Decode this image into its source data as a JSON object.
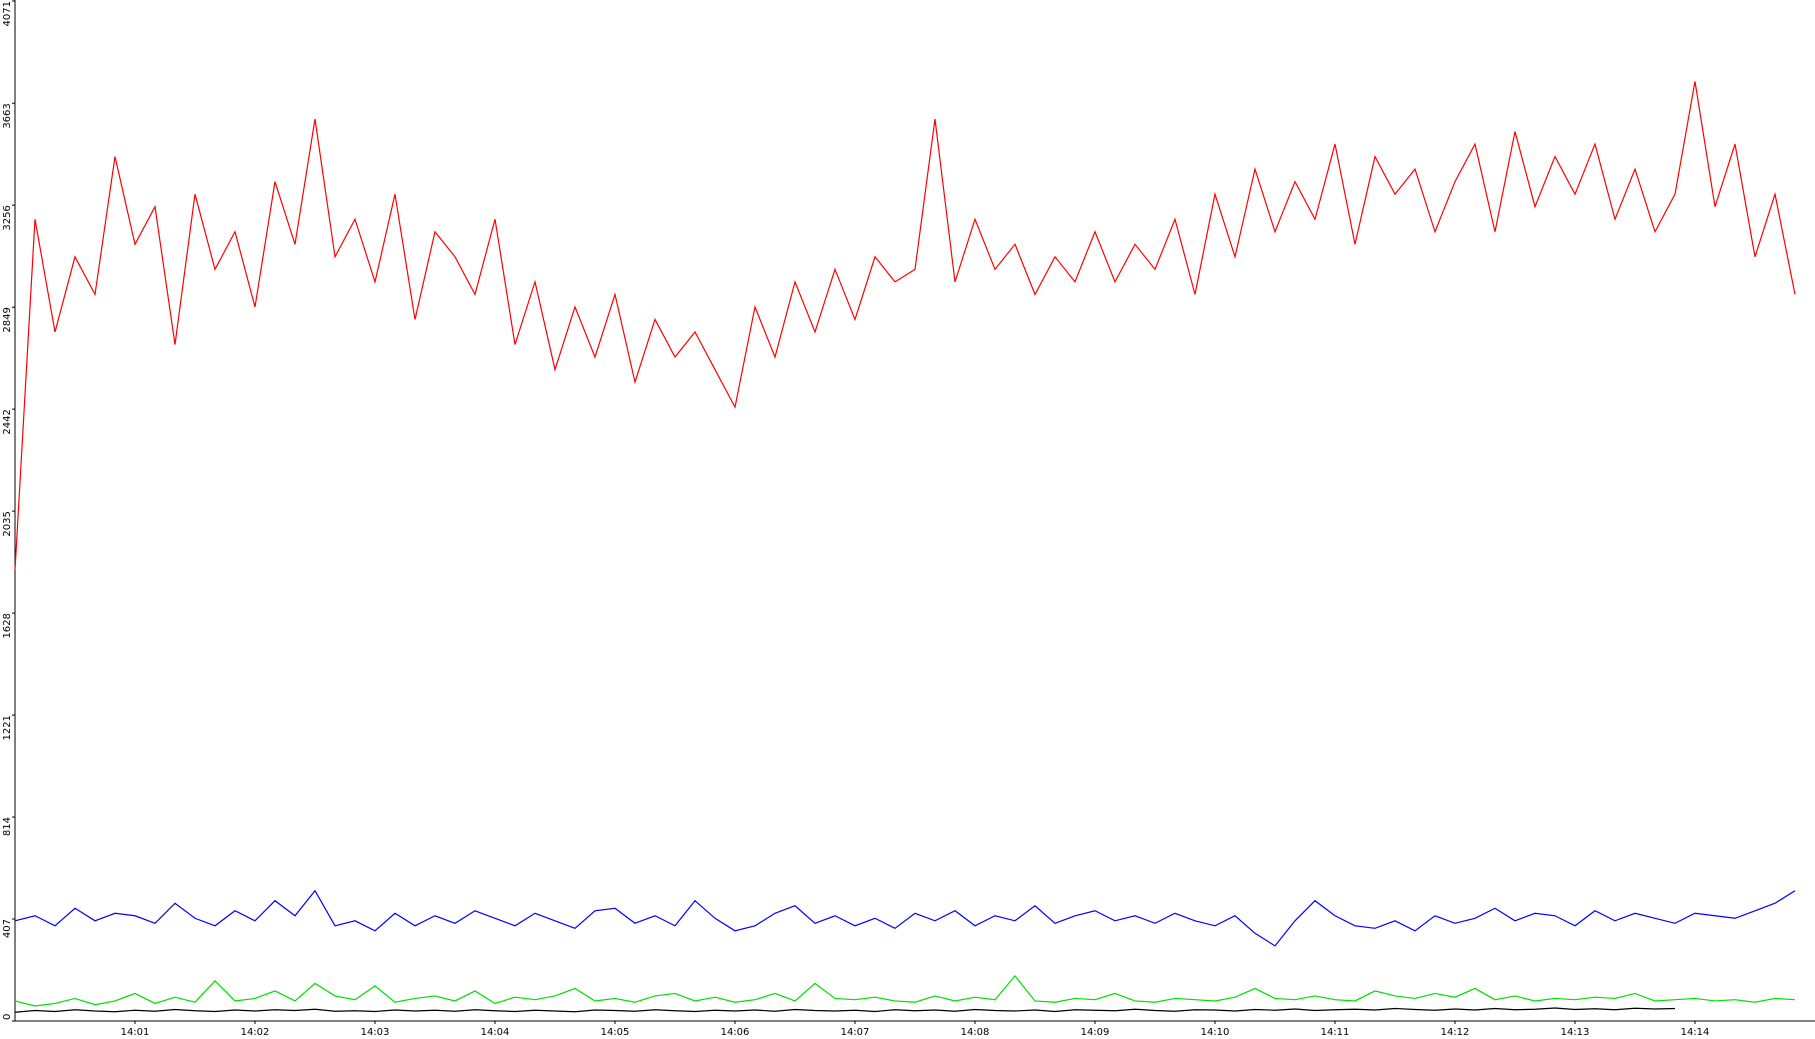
{
  "chart_data": {
    "type": "line",
    "xlim": [
      0,
      90
    ],
    "xticks": [
      {
        "value": 6,
        "label": "14:01"
      },
      {
        "value": 12,
        "label": "14:02"
      },
      {
        "value": 18,
        "label": "14:03"
      },
      {
        "value": 24,
        "label": "14:04"
      },
      {
        "value": 30,
        "label": "14:05"
      },
      {
        "value": 36,
        "label": "14:06"
      },
      {
        "value": 42,
        "label": "14:07"
      },
      {
        "value": 48,
        "label": "14:08"
      },
      {
        "value": 54,
        "label": "14:09"
      },
      {
        "value": 60,
        "label": "14:10"
      },
      {
        "value": 66,
        "label": "14:11"
      },
      {
        "value": 72,
        "label": "14:12"
      },
      {
        "value": 78,
        "label": "14:13"
      },
      {
        "value": 84,
        "label": "14:14"
      }
    ],
    "ylim": [
      0,
      4071
    ],
    "yticks": [
      0,
      407,
      814,
      1221,
      1628,
      2035,
      2442,
      2849,
      3256,
      3663,
      4071
    ],
    "series": [
      {
        "color": "#ff0000",
        "values": [
          1800,
          3200,
          2750,
          3050,
          2900,
          3450,
          3100,
          3250,
          2700,
          3300,
          3000,
          3150,
          2850,
          3350,
          3100,
          3600,
          3050,
          3200,
          2950,
          3300,
          2800,
          3150,
          3050,
          2900,
          3200,
          2700,
          2950,
          2600,
          2850,
          2650,
          2900,
          2550,
          2800,
          2650,
          2750,
          2600,
          2450,
          2850,
          2650,
          2950,
          2750,
          3000,
          2800,
          3050,
          2950,
          3000,
          3600,
          2950,
          3200,
          3000,
          3100,
          2900,
          3050,
          2950,
          3150,
          2950,
          3100,
          3000,
          3200,
          2900,
          3300,
          3050,
          3400,
          3150,
          3350,
          3200,
          3500,
          3100,
          3450,
          3300,
          3400,
          3150,
          3350,
          3500,
          3150,
          3550,
          3250,
          3450,
          3300,
          3500,
          3200,
          3400,
          3150,
          3300,
          3750,
          3250,
          3500,
          3050,
          3300,
          2900
        ]
      },
      {
        "color": "#0000ff",
        "values": [
          400,
          420,
          380,
          450,
          400,
          430,
          420,
          390,
          470,
          410,
          380,
          440,
          400,
          480,
          420,
          520,
          380,
          400,
          360,
          430,
          380,
          420,
          390,
          440,
          410,
          380,
          430,
          400,
          370,
          440,
          450,
          390,
          420,
          380,
          480,
          410,
          360,
          380,
          430,
          460,
          390,
          420,
          380,
          410,
          370,
          430,
          400,
          440,
          380,
          420,
          400,
          460,
          390,
          420,
          440,
          400,
          420,
          390,
          430,
          400,
          380,
          420,
          350,
          300,
          400,
          480,
          420,
          380,
          370,
          400,
          360,
          420,
          390,
          410,
          450,
          400,
          430,
          420,
          380,
          440,
          400,
          430,
          410,
          390,
          430,
          420,
          410,
          440,
          470,
          520
        ]
      },
      {
        "color": "#00dd00",
        "values": [
          80,
          60,
          70,
          90,
          65,
          80,
          110,
          70,
          95,
          75,
          160,
          80,
          90,
          120,
          80,
          150,
          100,
          85,
          140,
          75,
          90,
          100,
          80,
          120,
          70,
          95,
          85,
          100,
          130,
          80,
          90,
          75,
          100,
          110,
          80,
          95,
          75,
          85,
          110,
          80,
          150,
          90,
          85,
          95,
          80,
          75,
          100,
          80,
          95,
          85,
          180,
          80,
          75,
          90,
          85,
          110,
          80,
          75,
          90,
          85,
          80,
          95,
          130,
          90,
          85,
          100,
          85,
          80,
          120,
          100,
          90,
          110,
          95,
          130,
          85,
          100,
          80,
          90,
          85,
          95,
          90,
          110,
          80,
          85,
          90,
          80,
          85,
          75,
          90,
          85
        ]
      },
      {
        "color": "#000000",
        "values": [
          35,
          42,
          38,
          45,
          40,
          37,
          43,
          39,
          46,
          41,
          38,
          44,
          40,
          45,
          42,
          47,
          39,
          41,
          38,
          44,
          40,
          43,
          39,
          45,
          41,
          38,
          43,
          40,
          37,
          44,
          42,
          39,
          45,
          41,
          38,
          43,
          40,
          44,
          39,
          46,
          42,
          40,
          43,
          38,
          45,
          41,
          44,
          39,
          46,
          42,
          40,
          44,
          38,
          45,
          43,
          41,
          47,
          42,
          39,
          45,
          44,
          40,
          46,
          43,
          48,
          42,
          45,
          47,
          44,
          50,
          46,
          43,
          48,
          44,
          50,
          45,
          47,
          52,
          46,
          49,
          45,
          51,
          48,
          50
        ]
      }
    ]
  }
}
